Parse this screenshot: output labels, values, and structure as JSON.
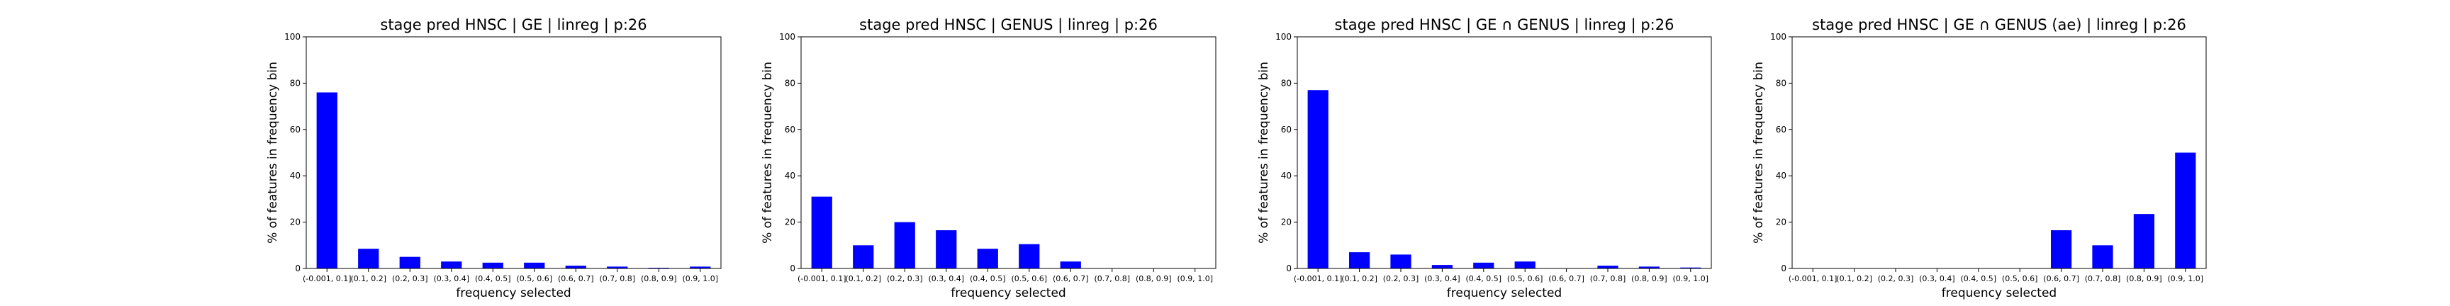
{
  "chart_data": [
    {
      "type": "bar",
      "title": "stage pred HNSC | GE | linreg | p:26",
      "xlabel": "frequency selected",
      "ylabel": "% of features in frequency bin",
      "ylim": [
        0,
        100
      ],
      "yticks": [
        0,
        20,
        40,
        60,
        80,
        100
      ],
      "categories": [
        "(-0.001, 0.1]",
        "(0.1, 0.2]",
        "(0.2, 0.3]",
        "(0.3, 0.4]",
        "(0.4, 0.5]",
        "(0.5, 0.6]",
        "(0.6, 0.7]",
        "(0.7, 0.8]",
        "(0.8, 0.9]",
        "(0.9, 1.0]"
      ],
      "values": [
        76,
        8.5,
        5,
        3,
        2.5,
        2.5,
        1.2,
        0.8,
        0.3,
        0.8
      ],
      "color": "#0000ff",
      "grid": false
    },
    {
      "type": "bar",
      "title": "stage pred HNSC | GENUS | linreg | p:26",
      "xlabel": "frequency selected",
      "ylabel": "% of features in frequency bin",
      "ylim": [
        0,
        100
      ],
      "yticks": [
        0,
        20,
        40,
        60,
        80,
        100
      ],
      "categories": [
        "(-0.001, 0.1]",
        "(0.1, 0.2]",
        "(0.2, 0.3]",
        "(0.3, 0.4]",
        "(0.4, 0.5]",
        "(0.5, 0.6]",
        "(0.6, 0.7]",
        "(0.7, 0.8]",
        "(0.8, 0.9]",
        "(0.9, 1.0]"
      ],
      "values": [
        31,
        10,
        20,
        16.5,
        8.5,
        10.5,
        3,
        0,
        0,
        0
      ],
      "color": "#0000ff",
      "grid": false
    },
    {
      "type": "bar",
      "title": "stage pred HNSC | GE ∩ GENUS | linreg | p:26",
      "xlabel": "frequency selected",
      "ylabel": "% of features in frequency bin",
      "ylim": [
        0,
        100
      ],
      "yticks": [
        0,
        20,
        40,
        60,
        80,
        100
      ],
      "categories": [
        "(-0.001, 0.1]",
        "(0.1, 0.2]",
        "(0.2, 0.3]",
        "(0.3, 0.4]",
        "(0.4, 0.5]",
        "(0.5, 0.6]",
        "(0.6, 0.7]",
        "(0.7, 0.8]",
        "(0.8, 0.9]",
        "(0.9, 1.0]"
      ],
      "values": [
        77,
        7,
        6,
        1.5,
        2.5,
        3,
        0,
        1.2,
        0.8,
        0.4
      ],
      "color": "#0000ff",
      "grid": false
    },
    {
      "type": "bar",
      "title": "stage pred HNSC | GE ∩ GENUS (ae) | linreg | p:26",
      "xlabel": "frequency selected",
      "ylabel": "% of features in frequency bin",
      "ylim": [
        0,
        100
      ],
      "yticks": [
        0,
        20,
        40,
        60,
        80,
        100
      ],
      "categories": [
        "(-0.001, 0.1]",
        "(0.1, 0.2]",
        "(0.2, 0.3]",
        "(0.3, 0.4]",
        "(0.4, 0.5]",
        "(0.5, 0.6]",
        "(0.6, 0.7]",
        "(0.7, 0.8]",
        "(0.8, 0.9]",
        "(0.9, 1.0]"
      ],
      "values": [
        0,
        0,
        0,
        0,
        0,
        0,
        16.5,
        10,
        23.5,
        50
      ],
      "color": "#0000ff",
      "grid": false
    }
  ]
}
